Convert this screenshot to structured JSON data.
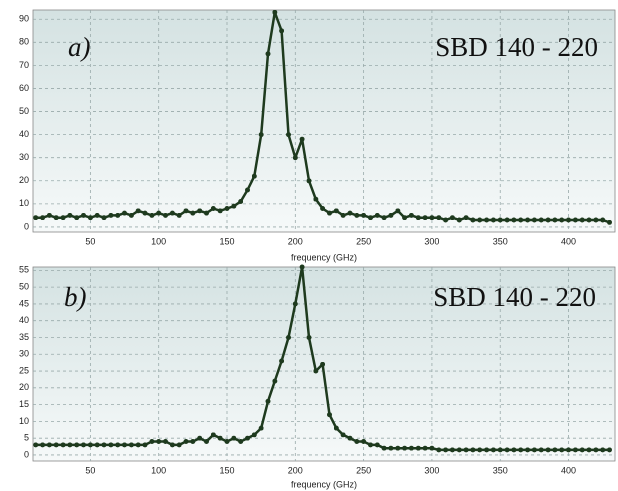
{
  "chart_data": [
    {
      "type": "line",
      "annotations": [
        "a)",
        "SBD 140 - 220"
      ],
      "x_label": "frequency (GHz)",
      "color": "#1e3a1e",
      "xlim": [
        8,
        434
      ],
      "ylim": [
        -2.2,
        94
      ],
      "xticks": [
        50,
        100,
        150,
        200,
        250,
        300,
        350,
        400
      ],
      "yticks": [
        0,
        10,
        20,
        30,
        40,
        50,
        60,
        70,
        80,
        90
      ],
      "grid": true,
      "x": [
        10,
        15,
        20,
        25,
        30,
        35,
        40,
        45,
        50,
        55,
        60,
        65,
        70,
        75,
        80,
        85,
        90,
        95,
        100,
        105,
        110,
        115,
        120,
        125,
        130,
        135,
        140,
        145,
        150,
        155,
        160,
        165,
        170,
        175,
        180,
        185,
        190,
        195,
        200,
        205,
        210,
        215,
        220,
        225,
        230,
        235,
        240,
        245,
        250,
        255,
        260,
        265,
        270,
        275,
        280,
        285,
        290,
        295,
        300,
        305,
        310,
        315,
        320,
        325,
        330,
        335,
        340,
        345,
        350,
        355,
        360,
        365,
        370,
        375,
        380,
        385,
        390,
        395,
        400,
        405,
        410,
        415,
        420,
        425,
        430
      ],
      "values": [
        4,
        4,
        5,
        4,
        4,
        5,
        4,
        5,
        4,
        5,
        4,
        5,
        5,
        6,
        5,
        7,
        6,
        5,
        6,
        5,
        6,
        5,
        7,
        6,
        7,
        6,
        8,
        7,
        8,
        9,
        11,
        16,
        22,
        40,
        75,
        93,
        85,
        40,
        30,
        38,
        20,
        12,
        8,
        6,
        7,
        5,
        6,
        5,
        5,
        4,
        5,
        4,
        5,
        7,
        4,
        5,
        4,
        4,
        4,
        4,
        3,
        4,
        3,
        4,
        3,
        3,
        3,
        3,
        3,
        3,
        3,
        3,
        3,
        3,
        3,
        3,
        3,
        3,
        3,
        3,
        3,
        3,
        3,
        3,
        2
      ]
    },
    {
      "type": "line",
      "annotations": [
        "b)",
        "SBD 140 - 220"
      ],
      "x_label": "frequency (GHz)",
      "color": "#1e3a1e",
      "xlim": [
        8,
        434
      ],
      "ylim": [
        -1.8,
        56
      ],
      "xticks": [
        50,
        100,
        150,
        200,
        250,
        300,
        350,
        400
      ],
      "yticks": [
        0,
        5,
        10,
        15,
        20,
        25,
        30,
        35,
        40,
        45,
        50,
        55
      ],
      "grid": true,
      "x": [
        10,
        15,
        20,
        25,
        30,
        35,
        40,
        45,
        50,
        55,
        60,
        65,
        70,
        75,
        80,
        85,
        90,
        95,
        100,
        105,
        110,
        115,
        120,
        125,
        130,
        135,
        140,
        145,
        150,
        155,
        160,
        165,
        170,
        175,
        180,
        185,
        190,
        195,
        200,
        205,
        210,
        215,
        220,
        225,
        230,
        235,
        240,
        245,
        250,
        255,
        260,
        265,
        270,
        275,
        280,
        285,
        290,
        295,
        300,
        305,
        310,
        315,
        320,
        325,
        330,
        335,
        340,
        345,
        350,
        355,
        360,
        365,
        370,
        375,
        380,
        385,
        390,
        395,
        400,
        405,
        410,
        415,
        420,
        425,
        430
      ],
      "values": [
        3,
        3,
        3,
        3,
        3,
        3,
        3,
        3,
        3,
        3,
        3,
        3,
        3,
        3,
        3,
        3,
        3,
        4,
        4,
        4,
        3,
        3,
        4,
        4,
        5,
        4,
        6,
        5,
        4,
        5,
        4,
        5,
        6,
        8,
        16,
        22,
        28,
        35,
        45,
        56,
        35,
        25,
        27,
        12,
        8,
        6,
        5,
        4,
        4,
        3,
        3,
        2,
        2,
        2,
        2,
        2,
        2,
        2,
        2,
        1.5,
        1.5,
        1.5,
        1.5,
        1.5,
        1.5,
        1.5,
        1.5,
        1.5,
        1.5,
        1.5,
        1.5,
        1.5,
        1.5,
        1.5,
        1.5,
        1.5,
        1.5,
        1.5,
        1.5,
        1.5,
        1.5,
        1.5,
        1.5,
        1.5,
        1.5
      ]
    }
  ]
}
